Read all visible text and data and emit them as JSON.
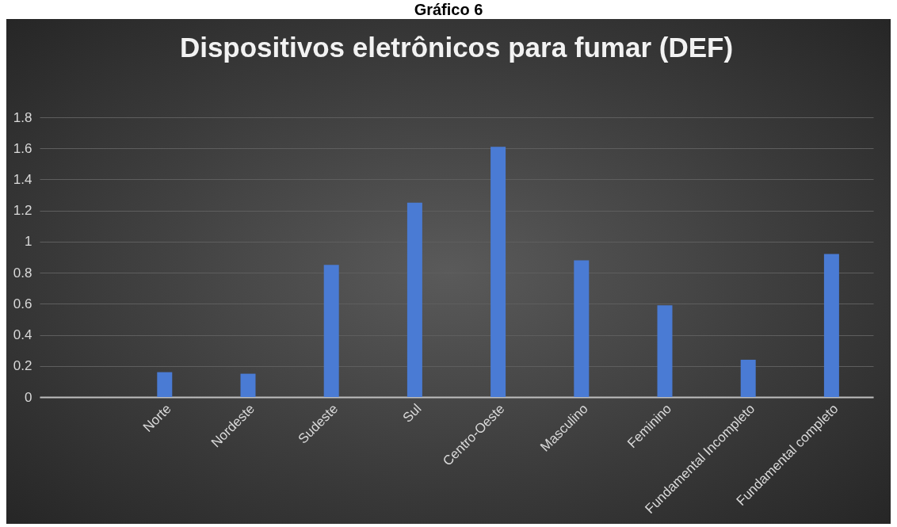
{
  "chart_data": {
    "type": "bar",
    "title": "Dispositivos eletrônicos para fumar (DEF)",
    "annotations": [
      "Gráfico 6"
    ],
    "categories": [
      null,
      "Norte",
      "Nordeste",
      "Sudeste",
      "Sul",
      "Centro-Oeste",
      "Masculino",
      "Feminino",
      "Fundamental Incompleto",
      "Fundamental completo"
    ],
    "values": [
      null,
      0.16,
      0.15,
      0.85,
      1.25,
      1.61,
      0.88,
      0.59,
      0.24,
      0.92
    ],
    "color": "#4a7bd4",
    "ylim": [
      0,
      1.8
    ],
    "yticks": [
      0,
      0.2,
      0.4,
      0.6,
      0.8,
      1,
      1.2,
      1.4,
      1.6,
      1.8
    ],
    "grid": "y"
  }
}
